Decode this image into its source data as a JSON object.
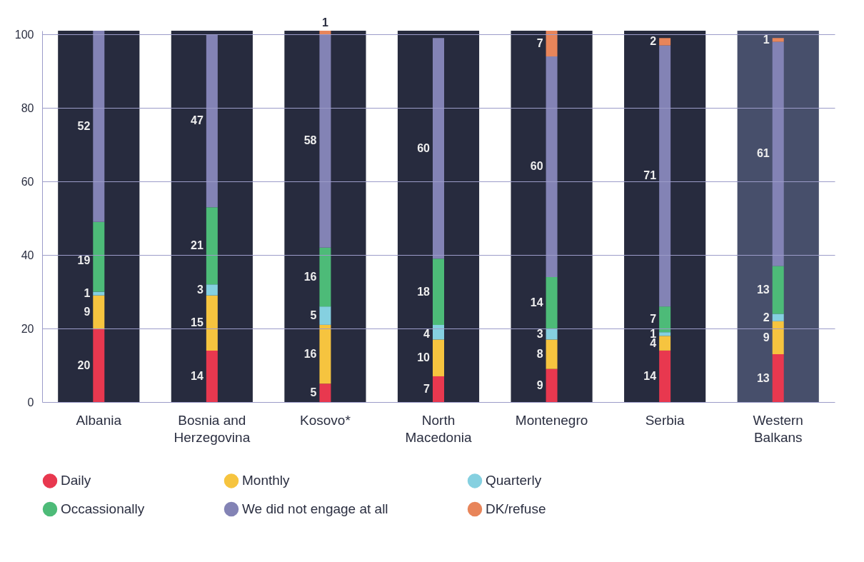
{
  "chart_data": {
    "type": "bar",
    "stacked": true,
    "data_labels": true,
    "grid": "y",
    "legend": "bottom",
    "ylim": [
      0,
      101
    ],
    "bands": [
      {
        "axis": "x",
        "from": "Albania",
        "to": "Albania",
        "color": "#272b3e"
      },
      {
        "axis": "x",
        "from": "Bosnia and Herzegovina",
        "to": "Bosnia and Herzegovina",
        "color": "#272b3e"
      },
      {
        "axis": "x",
        "from": "Kosovo*",
        "to": "Kosovo*",
        "color": "#272b3e"
      },
      {
        "axis": "x",
        "from": "North Macedonia",
        "to": "North Macedonia",
        "color": "#272b3e"
      },
      {
        "axis": "x",
        "from": "Montenegro",
        "to": "Montenegro",
        "color": "#272b3e"
      },
      {
        "axis": "x",
        "from": "Serbia",
        "to": "Serbia",
        "color": "#272b3e"
      },
      {
        "axis": "x",
        "from": "Western Balkans",
        "to": "Western Balkans",
        "color": "#474f6b"
      }
    ],
    "yticks": [
      0,
      20,
      40,
      60,
      80,
      100
    ],
    "categories": [
      "Albania",
      "Bosnia and Herzegovina",
      "Kosovo*",
      "North Macedonia",
      "Montenegro",
      "Serbia",
      "Western Balkans"
    ],
    "series": [
      {
        "name": "Daily",
        "color": "#e8384f",
        "values": [
          20,
          14,
          5,
          7,
          9,
          14,
          13
        ]
      },
      {
        "name": "Monthly",
        "color": "#f6c43f",
        "values": [
          9,
          15,
          16,
          10,
          8,
          4,
          9
        ]
      },
      {
        "name": "Quarterly",
        "color": "#85d0e0",
        "values": [
          1,
          3,
          5,
          4,
          3,
          1,
          2
        ]
      },
      {
        "name": "Occassionally",
        "color": "#4dbb78",
        "values": [
          19,
          21,
          16,
          18,
          14,
          7,
          13
        ]
      },
      {
        "name": "We did not engage at all",
        "color": "#8383b5",
        "values": [
          52,
          47,
          58,
          60,
          60,
          71,
          61
        ]
      },
      {
        "name": "DK/refuse",
        "color": "#e8855a",
        "values": [
          null,
          null,
          1,
          null,
          7,
          2,
          1
        ]
      }
    ]
  }
}
